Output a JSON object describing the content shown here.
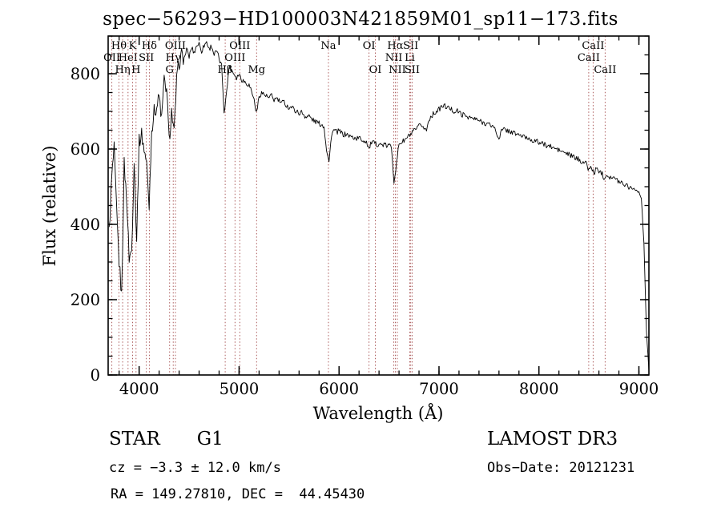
{
  "title": "spec−56293−HD100003N421859M01_sp11−173.fits",
  "annotations": {
    "object_type": "STAR",
    "subclass": "G1",
    "cz_line": "cz = −3.3 ± 12.0 km/s",
    "radec_line": "RA = 149.27810, DEC =  44.45430",
    "survey": "LAMOST DR3",
    "obsdate_line": "Obs−Date: 20121231"
  },
  "chart_data": {
    "type": "line",
    "title": "spec−56293−HD100003N421859M01_sp11−173.fits",
    "xlabel": "Wavelength (Å)",
    "ylabel": "Flux (relative)",
    "xlim": [
      3690,
      9100
    ],
    "ylim": [
      0,
      900
    ],
    "x_ticks": [
      4000,
      5000,
      6000,
      7000,
      8000,
      9000
    ],
    "y_ticks": [
      0,
      200,
      400,
      600,
      800
    ],
    "x_minor_step": 200,
    "y_minor_step": 50,
    "grid": false,
    "legend": "none",
    "line_color": "#000000",
    "marker_color": "#a34a4a",
    "x_start": 3700,
    "x_step": 25,
    "flux": [
      380,
      520,
      600,
      430,
      300,
      210,
      560,
      470,
      310,
      330,
      570,
      360,
      620,
      640,
      600,
      560,
      450,
      650,
      700,
      710,
      740,
      680,
      780,
      760,
      620,
      700,
      640,
      780,
      830,
      850,
      840,
      865,
      845,
      870,
      855,
      875,
      880,
      860,
      875,
      885,
      865,
      875,
      850,
      860,
      840,
      820,
      700,
      750,
      820,
      810,
      800,
      790,
      800,
      785,
      780,
      775,
      770,
      755,
      730,
      695,
      740,
      750,
      745,
      740,
      735,
      742,
      730,
      735,
      728,
      722,
      725,
      715,
      710,
      712,
      705,
      700,
      695,
      698,
      690,
      685,
      688,
      680,
      675,
      672,
      668,
      665,
      660,
      600,
      565,
      640,
      650,
      645,
      648,
      642,
      638,
      640,
      635,
      632,
      630,
      628,
      630,
      625,
      622,
      620,
      600,
      618,
      615,
      612,
      615,
      610,
      612,
      608,
      610,
      605,
      515,
      560,
      615,
      618,
      622,
      628,
      635,
      640,
      648,
      652,
      660,
      665,
      655,
      650,
      680,
      688,
      695,
      700,
      705,
      712,
      715,
      712,
      708,
      705,
      700,
      702,
      698,
      692,
      690,
      688,
      685,
      682,
      680,
      678,
      675,
      672,
      670,
      668,
      665,
      662,
      660,
      640,
      630,
      648,
      652,
      650,
      648,
      645,
      642,
      640,
      638,
      635,
      632,
      630,
      628,
      625,
      622,
      620,
      618,
      615,
      612,
      610,
      608,
      605,
      602,
      600,
      597,
      594,
      591,
      588,
      585,
      582,
      578,
      575,
      572,
      568,
      565,
      560,
      545,
      552,
      535,
      548,
      542,
      538,
      525,
      532,
      528,
      525,
      522,
      518,
      515,
      512,
      508,
      505,
      500,
      498,
      495,
      490,
      485,
      470,
      350,
      120,
      10
    ],
    "spectral_lines": [
      {
        "wavelength": 3727,
        "label": "OII",
        "row": 2
      },
      {
        "wavelength": 3798,
        "label": "Hθ",
        "row": 1
      },
      {
        "wavelength": 3835,
        "label": "Hη",
        "row": 3
      },
      {
        "wavelength": 3889,
        "label": "HeI",
        "row": 2
      },
      {
        "wavelength": 3934,
        "label": "K",
        "row": 1
      },
      {
        "wavelength": 3969,
        "label": "H",
        "row": 3
      },
      {
        "wavelength": 4072,
        "label": "SII",
        "row": 2
      },
      {
        "wavelength": 4102,
        "label": "Hδ",
        "row": 1
      },
      {
        "wavelength": 4305,
        "label": "G",
        "row": 3
      },
      {
        "wavelength": 4341,
        "label": "Hγ",
        "row": 2
      },
      {
        "wavelength": 4363,
        "label": "OIII",
        "row": 1
      },
      {
        "wavelength": 4861,
        "label": "Hβ",
        "row": 3
      },
      {
        "wavelength": 4959,
        "label": "OIII",
        "row": 2
      },
      {
        "wavelength": 5007,
        "label": "OIII",
        "row": 1
      },
      {
        "wavelength": 5175,
        "label": "Mg",
        "row": 3
      },
      {
        "wavelength": 5894,
        "label": "Na",
        "row": 1
      },
      {
        "wavelength": 6300,
        "label": "OI",
        "row": 1
      },
      {
        "wavelength": 6363,
        "label": "OI",
        "row": 3
      },
      {
        "wavelength": 6548,
        "label": "NII",
        "row": 2
      },
      {
        "wavelength": 6563,
        "label": "Hα",
        "row": 1
      },
      {
        "wavelength": 6583,
        "label": "NII",
        "row": 3
      },
      {
        "wavelength": 6708,
        "label": "Li",
        "row": 2
      },
      {
        "wavelength": 6717,
        "label": "SII",
        "row": 1
      },
      {
        "wavelength": 6731,
        "label": "SII",
        "row": 3
      },
      {
        "wavelength": 8498,
        "label": "CaII",
        "row": 2
      },
      {
        "wavelength": 8542,
        "label": "CaII",
        "row": 1
      },
      {
        "wavelength": 8662,
        "label": "CaII",
        "row": 3
      }
    ]
  }
}
